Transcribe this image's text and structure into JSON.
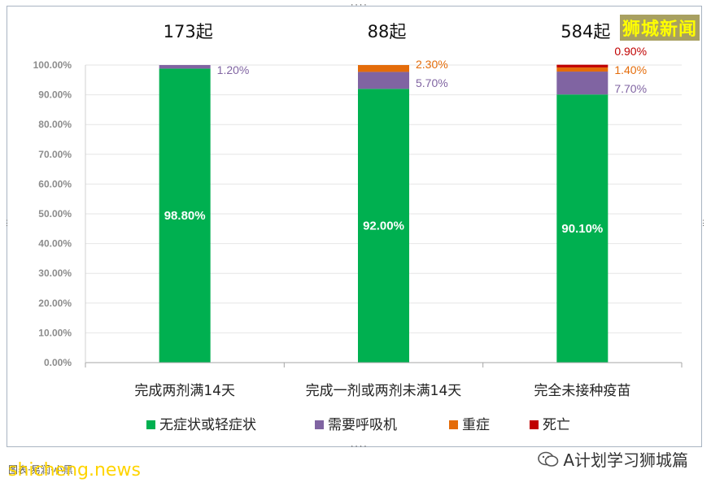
{
  "watermark": {
    "brand": "狮城新闻",
    "footer_left": "shicheng.news",
    "footer_left_under": "图表·易润·小黑",
    "footer_right": "A计划学习狮城篇"
  },
  "colors": {
    "mild": "#00b050",
    "oxygen": "#8064a2",
    "severe": "#e46c0a",
    "death": "#c00000"
  },
  "chart_data": {
    "type": "bar",
    "stacked": true,
    "percent": true,
    "categories": [
      "完成两剂满14天",
      "完成一剂或两剂未满14天",
      "完全未接种疫苗"
    ],
    "category_counts": [
      "173起",
      "88起",
      "584起"
    ],
    "series": [
      {
        "name": "无症状或轻症状",
        "color": "#00b050",
        "values": [
          98.8,
          92.0,
          90.1
        ],
        "labels": [
          "98.80%",
          "92.00%",
          "90.10%"
        ]
      },
      {
        "name": "需要呼吸机",
        "color": "#8064a2",
        "values": [
          1.2,
          5.7,
          7.7
        ],
        "labels": [
          "1.20%",
          "5.70%",
          "7.70%"
        ]
      },
      {
        "name": "重症",
        "color": "#e46c0a",
        "values": [
          0,
          2.3,
          1.4
        ],
        "labels": [
          "",
          "2.30%",
          "1.40%"
        ]
      },
      {
        "name": "死亡",
        "color": "#c00000",
        "values": [
          0,
          0,
          0.9
        ],
        "labels": [
          "",
          "",
          "0.90%"
        ]
      }
    ],
    "yticks": [
      "0.00%",
      "10.00%",
      "20.00%",
      "30.00%",
      "40.00%",
      "50.00%",
      "60.00%",
      "70.00%",
      "80.00%",
      "90.00%",
      "100.00%"
    ],
    "ylim": [
      0,
      100
    ],
    "grid": true,
    "legend_position": "bottom"
  }
}
